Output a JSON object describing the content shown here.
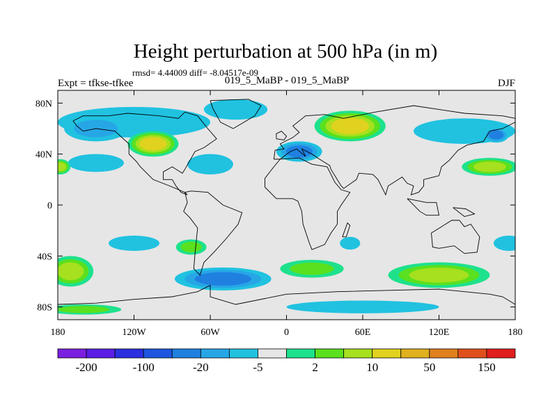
{
  "chart_data": {
    "type": "heatmap",
    "title": "Height perturbation at 500 hPa (in m)",
    "stats": "rmsd= 4.44009 diff= -8.04517e-09",
    "left_label": "Expt = tfkse-tfkee",
    "center_label": "019_5_MaBP - 019_5_MaBP",
    "right_label": "DJF",
    "xlim": [
      -180,
      180
    ],
    "ylim": [
      -90,
      90
    ],
    "x_ticks": [
      {
        "value": -180,
        "label": "180"
      },
      {
        "value": -120,
        "label": "120W"
      },
      {
        "value": -60,
        "label": "60W"
      },
      {
        "value": 0,
        "label": "0"
      },
      {
        "value": 60,
        "label": "60E"
      },
      {
        "value": 120,
        "label": "120E"
      },
      {
        "value": 180,
        "label": "180"
      }
    ],
    "y_ticks": [
      {
        "value": 80,
        "label": "80N"
      },
      {
        "value": 40,
        "label": "40N"
      },
      {
        "value": 0,
        "label": "0"
      },
      {
        "value": -40,
        "label": "40S"
      },
      {
        "value": -80,
        "label": "80S"
      }
    ],
    "colorbar": {
      "colors": [
        "#7b1fe0",
        "#5a1ee6",
        "#2a2fe0",
        "#1e55e0",
        "#1f80e0",
        "#27a6e6",
        "#20c2e0",
        "#e6e6e6",
        "#1ee18c",
        "#5ae01e",
        "#a6e01e",
        "#e0d21e",
        "#e0b01e",
        "#e0801e",
        "#e0501e",
        "#e01e1e"
      ],
      "labels": [
        {
          "boundary": 1,
          "text": "-200"
        },
        {
          "boundary": 3,
          "text": "-100"
        },
        {
          "boundary": 5,
          "text": "-20"
        },
        {
          "boundary": 7,
          "text": "-5"
        },
        {
          "boundary": 9,
          "text": "2"
        },
        {
          "boundary": 11,
          "text": "10"
        },
        {
          "boundary": 13,
          "text": "50"
        },
        {
          "boundary": 15,
          "text": "150"
        }
      ]
    },
    "fields": [
      {
        "name": "arctic-cyan-band",
        "lon": -120,
        "lat": 65,
        "slon": 60,
        "slat": 12,
        "level": 6
      },
      {
        "name": "pacific-nw-low",
        "lon": -150,
        "lat": 60,
        "slon": 25,
        "slat": 10,
        "level": 5
      },
      {
        "name": "north-america-ridge",
        "lon": -105,
        "lat": 48,
        "slon": 20,
        "slat": 10,
        "level": 11
      },
      {
        "name": "central-pacific-cyan",
        "lon": -150,
        "lat": 33,
        "slon": 22,
        "slat": 7,
        "level": 6
      },
      {
        "name": "dateline-high-west",
        "lon": -178,
        "lat": 30,
        "slon": 8,
        "slat": 6,
        "level": 10
      },
      {
        "name": "atlantic-cyan",
        "lon": -60,
        "lat": 32,
        "slon": 18,
        "slat": 8,
        "level": 6
      },
      {
        "name": "north-atlantic-band",
        "lon": -40,
        "lat": 75,
        "slon": 25,
        "slat": 8,
        "level": 6
      },
      {
        "name": "eurasia-ridge",
        "lon": 50,
        "lat": 62,
        "slon": 28,
        "slat": 12,
        "level": 11
      },
      {
        "name": "europe-low",
        "lon": 10,
        "lat": 42,
        "slon": 18,
        "slat": 8,
        "level": 4
      },
      {
        "name": "east-asia-band",
        "lon": 140,
        "lat": 58,
        "slon": 40,
        "slat": 10,
        "level": 6
      },
      {
        "name": "siberia-low",
        "lon": 165,
        "lat": 55,
        "slon": 10,
        "slat": 6,
        "level": 4
      },
      {
        "name": "north-pacific-high",
        "lon": 160,
        "lat": 30,
        "slon": 22,
        "slat": 7,
        "level": 10
      },
      {
        "name": "southern-ocean-high-west",
        "lon": -170,
        "lat": -52,
        "slon": 18,
        "slat": 12,
        "level": 10
      },
      {
        "name": "south-pacific-cyan",
        "lon": -120,
        "lat": -30,
        "slon": 20,
        "slat": 6,
        "level": 6
      },
      {
        "name": "south-pacific-green",
        "lon": -75,
        "lat": -33,
        "slon": 12,
        "slat": 6,
        "level": 9
      },
      {
        "name": "southern-ocean-low",
        "lon": -50,
        "lat": -58,
        "slon": 38,
        "slat": 9,
        "level": 4
      },
      {
        "name": "south-atlantic-green",
        "lon": 20,
        "lat": -50,
        "slon": 25,
        "slat": 7,
        "level": 9
      },
      {
        "name": "south-africa-cyan",
        "lon": 50,
        "lat": -30,
        "slon": 8,
        "slat": 5,
        "level": 6
      },
      {
        "name": "southern-ocean-high-east",
        "lon": 120,
        "lat": -55,
        "slon": 40,
        "slat": 10,
        "level": 10
      },
      {
        "name": "south-pacific-east-cyan",
        "lon": 175,
        "lat": -30,
        "slon": 12,
        "slat": 6,
        "level": 6
      },
      {
        "name": "antarctic-band-green",
        "lon": -160,
        "lat": -82,
        "slon": 30,
        "slat": 4,
        "level": 9
      },
      {
        "name": "antarctic-band-cyan",
        "lon": 60,
        "lat": -80,
        "slon": 60,
        "slat": 5,
        "level": 6
      }
    ],
    "coastlines": [
      [
        [
          -168,
          66
        ],
        [
          -160,
          70
        ],
        [
          -140,
          70
        ],
        [
          -125,
          72
        ],
        [
          -100,
          70
        ],
        [
          -85,
          68
        ],
        [
          -80,
          73
        ],
        [
          -70,
          70
        ],
        [
          -62,
          60
        ],
        [
          -55,
          52
        ],
        [
          -65,
          45
        ],
        [
          -72,
          42
        ],
        [
          -76,
          35
        ],
        [
          -80,
          28
        ],
        [
          -82,
          25
        ],
        [
          -90,
          30
        ],
        [
          -97,
          26
        ],
        [
          -97,
          20
        ],
        [
          -90,
          20
        ],
        [
          -87,
          15
        ],
        [
          -83,
          10
        ],
        [
          -78,
          8
        ],
        [
          -80,
          10
        ],
        [
          -92,
          15
        ],
        [
          -105,
          20
        ],
        [
          -110,
          25
        ],
        [
          -115,
          30
        ],
        [
          -118,
          34
        ],
        [
          -124,
          40
        ],
        [
          -124,
          48
        ],
        [
          -135,
          58
        ],
        [
          -150,
          60
        ],
        [
          -160,
          58
        ],
        [
          -165,
          62
        ],
        [
          -168,
          66
        ]
      ],
      [
        [
          -80,
          10
        ],
        [
          -75,
          11
        ],
        [
          -62,
          10
        ],
        [
          -50,
          0
        ],
        [
          -35,
          -6
        ],
        [
          -38,
          -15
        ],
        [
          -48,
          -27
        ],
        [
          -58,
          -38
        ],
        [
          -65,
          -45
        ],
        [
          -68,
          -55
        ],
        [
          -73,
          -50
        ],
        [
          -72,
          -38
        ],
        [
          -70,
          -18
        ],
        [
          -76,
          -10
        ],
        [
          -81,
          -5
        ],
        [
          -78,
          2
        ],
        [
          -80,
          10
        ]
      ],
      [
        [
          -60,
          82
        ],
        [
          -30,
          83
        ],
        [
          -20,
          78
        ],
        [
          -25,
          70
        ],
        [
          -42,
          60
        ],
        [
          -52,
          65
        ],
        [
          -58,
          76
        ],
        [
          -60,
          82
        ]
      ],
      [
        [
          -10,
          36
        ],
        [
          -9,
          43
        ],
        [
          -2,
          44
        ],
        [
          -5,
          48
        ],
        [
          5,
          53
        ],
        [
          10,
          57
        ],
        [
          5,
          62
        ],
        [
          15,
          70
        ],
        [
          30,
          71
        ],
        [
          45,
          68
        ],
        [
          70,
          73
        ],
        [
          100,
          78
        ],
        [
          140,
          72
        ],
        [
          170,
          70
        ],
        [
          180,
          68
        ],
        [
          180,
          65
        ],
        [
          170,
          60
        ],
        [
          160,
          58
        ],
        [
          155,
          50
        ],
        [
          142,
          47
        ],
        [
          135,
          43
        ],
        [
          128,
          35
        ],
        [
          122,
          30
        ],
        [
          120,
          23
        ],
        [
          108,
          20
        ],
        [
          108,
          15
        ],
        [
          104,
          10
        ],
        [
          98,
          8
        ],
        [
          100,
          15
        ],
        [
          95,
          17
        ],
        [
          91,
          22
        ],
        [
          80,
          15
        ],
        [
          78,
          8
        ],
        [
          72,
          20
        ],
        [
          68,
          24
        ],
        [
          57,
          25
        ],
        [
          55,
          20
        ],
        [
          45,
          13
        ],
        [
          43,
          15
        ],
        [
          35,
          28
        ],
        [
          34,
          31
        ],
        [
          26,
          36
        ],
        [
          20,
          40
        ],
        [
          12,
          44
        ],
        [
          15,
          38
        ],
        [
          8,
          44
        ],
        [
          3,
          42
        ],
        [
          -5,
          36
        ],
        [
          -10,
          36
        ]
      ],
      [
        [
          -17,
          21
        ],
        [
          -17,
          14
        ],
        [
          -8,
          5
        ],
        [
          5,
          5
        ],
        [
          9,
          3
        ],
        [
          12,
          -5
        ],
        [
          13,
          -15
        ],
        [
          18,
          -30
        ],
        [
          20,
          -35
        ],
        [
          30,
          -31
        ],
        [
          35,
          -22
        ],
        [
          40,
          -15
        ],
        [
          40,
          -5
        ],
        [
          43,
          0
        ],
        [
          50,
          10
        ],
        [
          43,
          12
        ],
        [
          38,
          18
        ],
        [
          32,
          30
        ],
        [
          20,
          32
        ],
        [
          10,
          37
        ],
        [
          -5,
          36
        ],
        [
          -10,
          30
        ],
        [
          -17,
          21
        ]
      ],
      [
        [
          114,
          -22
        ],
        [
          122,
          -17
        ],
        [
          130,
          -12
        ],
        [
          136,
          -12
        ],
        [
          140,
          -17
        ],
        [
          145,
          -15
        ],
        [
          152,
          -25
        ],
        [
          150,
          -37
        ],
        [
          140,
          -38
        ],
        [
          132,
          -32
        ],
        [
          120,
          -34
        ],
        [
          115,
          -33
        ],
        [
          114,
          -22
        ]
      ],
      [
        [
          44,
          -25
        ],
        [
          48,
          -14
        ],
        [
          50,
          -16
        ],
        [
          47,
          -25
        ],
        [
          44,
          -25
        ]
      ],
      [
        [
          -180,
          -78
        ],
        [
          -150,
          -77
        ],
        [
          -120,
          -74
        ],
        [
          -90,
          -72
        ],
        [
          -70,
          -68
        ],
        [
          -60,
          -63
        ],
        [
          -60,
          -72
        ],
        [
          -40,
          -78
        ],
        [
          0,
          -70
        ],
        [
          40,
          -68
        ],
        [
          80,
          -67
        ],
        [
          120,
          -66
        ],
        [
          160,
          -70
        ],
        [
          170,
          -72
        ],
        [
          180,
          -78
        ]
      ],
      [
        [
          95,
          5
        ],
        [
          105,
          -5
        ],
        [
          110,
          -8
        ],
        [
          120,
          -8
        ],
        [
          118,
          2
        ],
        [
          110,
          2
        ],
        [
          100,
          4
        ],
        [
          95,
          5
        ]
      ],
      [
        [
          131,
          -2
        ],
        [
          141,
          -3
        ],
        [
          148,
          -7
        ],
        [
          140,
          -9
        ],
        [
          131,
          -2
        ]
      ],
      [
        [
          -8,
          52
        ],
        [
          -2,
          51
        ],
        [
          0,
          54
        ],
        [
          -4,
          58
        ],
        [
          -8,
          56
        ],
        [
          -8,
          52
        ]
      ]
    ]
  }
}
